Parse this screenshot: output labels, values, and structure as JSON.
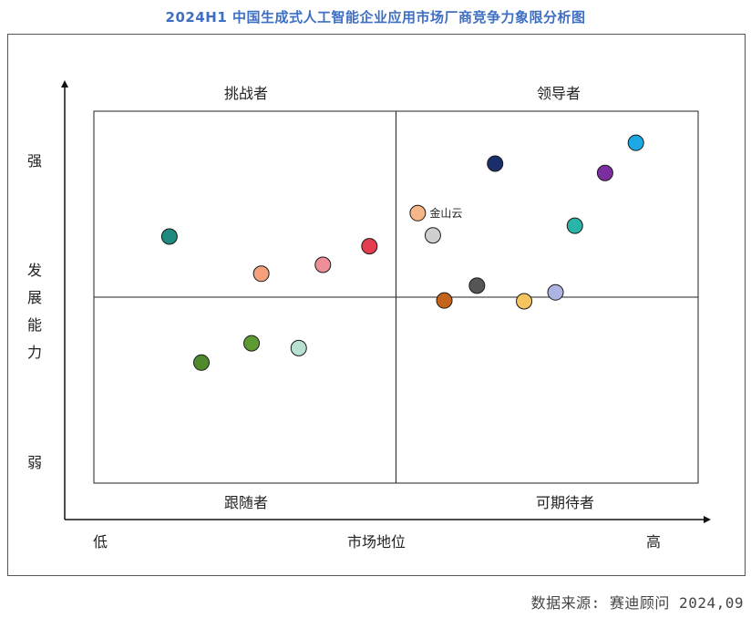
{
  "title": "2024H1 中国生成式人工智能企业应用市场厂商竞争力象限分析图",
  "source": "数据来源: 赛迪顾问  2024,09",
  "chart_data": {
    "type": "scatter",
    "title": "2024H1 中国生成式人工智能企业应用市场厂商竞争力象限分析图",
    "xlabel": "市场地位",
    "ylabel_chars": [
      "发",
      "展",
      "能",
      "力"
    ],
    "x_low_label": "低",
    "x_high_label": "高",
    "y_high_label": "强",
    "y_low_label": "弱",
    "xlim": [
      0,
      100
    ],
    "ylim": [
      0,
      100
    ],
    "quadrants": {
      "top_left": "挑战者",
      "top_right": "领导者",
      "bottom_left": "跟随者",
      "bottom_right": "可期待者"
    },
    "points": [
      {
        "x": 12.5,
        "y": 66.3,
        "color": "#1f8a80",
        "label": ""
      },
      {
        "x": 27.7,
        "y": 56.3,
        "color": "#f5a07a",
        "label": ""
      },
      {
        "x": 37.9,
        "y": 58.7,
        "color": "#ee8e96",
        "label": ""
      },
      {
        "x": 45.6,
        "y": 63.7,
        "color": "#e23e50",
        "label": ""
      },
      {
        "x": 53.6,
        "y": 72.6,
        "color": "#f6b788",
        "label": "金山云"
      },
      {
        "x": 56.1,
        "y": 66.6,
        "color": "#cfcfcf",
        "label": ""
      },
      {
        "x": 66.4,
        "y": 85.9,
        "color": "#1a2e6b",
        "label": ""
      },
      {
        "x": 79.6,
        "y": 69.2,
        "color": "#2ab5a9",
        "label": ""
      },
      {
        "x": 84.6,
        "y": 83.4,
        "color": "#7a2ea0",
        "label": ""
      },
      {
        "x": 89.7,
        "y": 91.5,
        "color": "#1ea8e3",
        "label": ""
      },
      {
        "x": 58.0,
        "y": 49.1,
        "color": "#c4631b",
        "label": ""
      },
      {
        "x": 63.4,
        "y": 53.1,
        "color": "#565656",
        "label": ""
      },
      {
        "x": 71.2,
        "y": 48.9,
        "color": "#f6c560",
        "label": ""
      },
      {
        "x": 76.4,
        "y": 51.3,
        "color": "#aeb4e2",
        "label": ""
      },
      {
        "x": 17.8,
        "y": 32.4,
        "color": "#4f8a2c",
        "label": ""
      },
      {
        "x": 26.1,
        "y": 37.6,
        "color": "#5e9a34",
        "label": ""
      },
      {
        "x": 33.9,
        "y": 36.3,
        "color": "#b9e1d2",
        "label": ""
      }
    ]
  }
}
